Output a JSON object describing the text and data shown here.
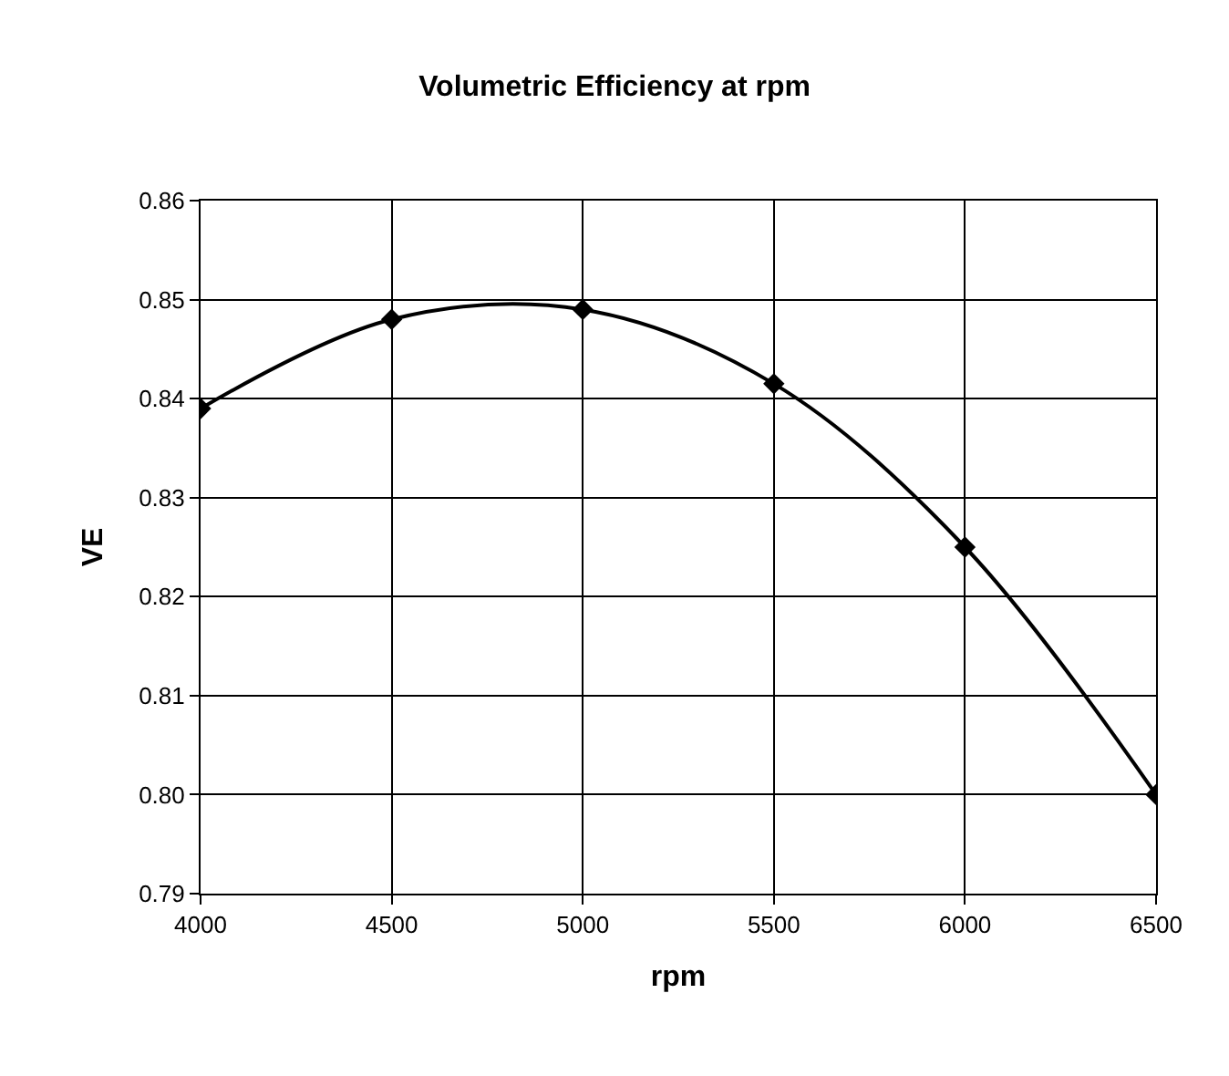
{
  "chart_data": {
    "type": "line",
    "title": "Volumetric Efficiency at rpm",
    "xlabel": "rpm",
    "ylabel": "VE",
    "x": [
      4000,
      4500,
      5000,
      5500,
      6000,
      6500
    ],
    "series": [
      {
        "color": "#000000",
        "values": [
          0.839,
          0.848,
          0.849,
          0.8415,
          0.825,
          0.8
        ]
      }
    ],
    "xlim": [
      4000,
      6500
    ],
    "xticks": [
      4000,
      4500,
      5000,
      5500,
      6000,
      6500
    ],
    "ylim": [
      0.79,
      0.86
    ],
    "yticks": [
      {
        "value": 0.79,
        "label": "0.79"
      },
      {
        "value": 0.8,
        "label": "0.80"
      },
      {
        "value": 0.81,
        "label": "0.81"
      },
      {
        "value": 0.82,
        "label": "0.82"
      },
      {
        "value": 0.83,
        "label": "0.83"
      },
      {
        "value": 0.84,
        "label": "0.84"
      },
      {
        "value": 0.85,
        "label": "0.85"
      },
      {
        "value": 0.86,
        "label": "0.86"
      }
    ],
    "grid": true,
    "marker": "diamond",
    "line_style": "solid"
  }
}
